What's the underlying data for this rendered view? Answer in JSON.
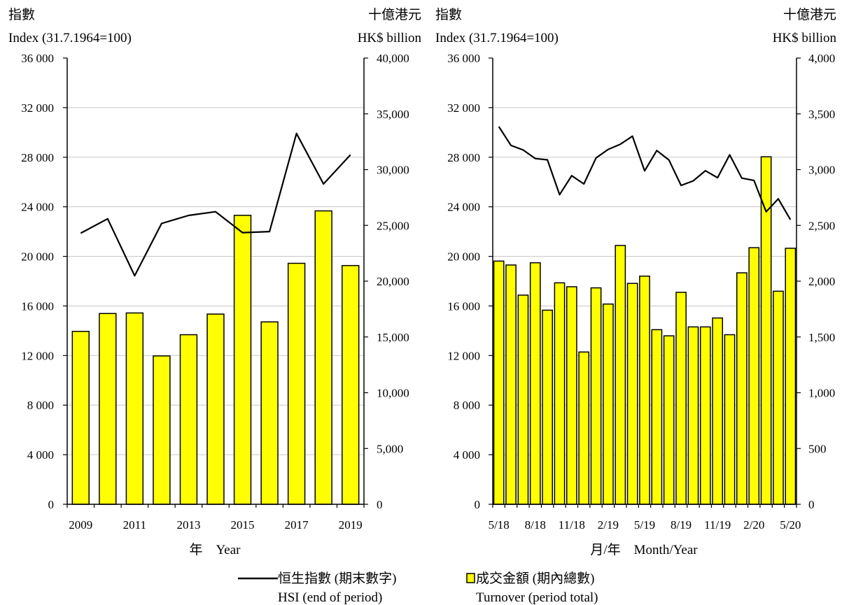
{
  "chart_data": [
    {
      "type": "bar+line",
      "left_axis": {
        "title_zh": "指數",
        "title_en": "Index (31.7.1964=100)",
        "min": 0,
        "max": 36000,
        "ticks": [
          0,
          4000,
          8000,
          12000,
          16000,
          20000,
          24000,
          28000,
          32000,
          36000
        ],
        "tick_labels": [
          "0",
          "4 000",
          "8 000",
          "12 000",
          "16 000",
          "20 000",
          "24 000",
          "28 000",
          "32 000",
          "36 000"
        ]
      },
      "right_axis": {
        "title_zh": "十億港元",
        "title_en": "HK$ billion",
        "min": 0,
        "max": 40000,
        "ticks": [
          0,
          5000,
          10000,
          15000,
          20000,
          25000,
          30000,
          35000,
          40000
        ],
        "tick_labels": [
          "0",
          "5,000",
          "10,000",
          "15,000",
          "20,000",
          "25,000",
          "30,000",
          "35,000",
          "40,000"
        ]
      },
      "x_axis": {
        "label": "年　Year",
        "tick_labels": [
          "2009",
          "",
          "2011",
          "",
          "2013",
          "",
          "2015",
          "",
          "2017",
          "",
          "2019"
        ]
      },
      "categories": [
        "2009",
        "2010",
        "2011",
        "2012",
        "2013",
        "2014",
        "2015",
        "2016",
        "2017",
        "2018",
        "2019"
      ],
      "turnover": [
        15500,
        17100,
        17150,
        13300,
        15200,
        17050,
        25900,
        16350,
        21600,
        26300,
        21400
      ],
      "hsi": [
        21870,
        23035,
        18434,
        22657,
        23306,
        23605,
        21914,
        22001,
        29919,
        25846,
        28190
      ]
    },
    {
      "type": "bar+line",
      "left_axis": {
        "title_zh": "指數",
        "title_en": "Index (31.7.1964=100)",
        "min": 0,
        "max": 36000,
        "ticks": [
          0,
          4000,
          8000,
          12000,
          16000,
          20000,
          24000,
          28000,
          32000,
          36000
        ],
        "tick_labels": [
          "0",
          "4 000",
          "8 000",
          "12 000",
          "16 000",
          "20 000",
          "24 000",
          "28 000",
          "32 000",
          "36 000"
        ]
      },
      "right_axis": {
        "title_zh": "十億港元",
        "title_en": "HK$ billion",
        "min": 0,
        "max": 4000,
        "ticks": [
          0,
          500,
          1000,
          1500,
          2000,
          2500,
          3000,
          3500,
          4000
        ],
        "tick_labels": [
          "0",
          "500",
          "1,000",
          "1,500",
          "2,000",
          "2,500",
          "3,000",
          "3,500",
          "4,000"
        ]
      },
      "x_axis": {
        "label": "月/年　Month/Year",
        "tick_labels": [
          "5/18",
          "",
          "",
          "8/18",
          "",
          "",
          "11/18",
          "",
          "",
          "2/19",
          "",
          "",
          "5/19",
          "",
          "",
          "8/19",
          "",
          "",
          "11/19",
          "",
          "",
          "2/20",
          "",
          "",
          "5/20"
        ]
      },
      "categories": [
        "5/18",
        "6/18",
        "7/18",
        "8/18",
        "9/18",
        "10/18",
        "11/18",
        "12/18",
        "1/19",
        "2/19",
        "3/19",
        "4/19",
        "5/19",
        "6/19",
        "7/19",
        "8/19",
        "9/19",
        "10/19",
        "11/19",
        "12/19",
        "1/20",
        "2/20",
        "3/20",
        "4/20",
        "5/20"
      ],
      "turnover": [
        2180,
        2145,
        1875,
        2165,
        1740,
        1985,
        1950,
        1365,
        1940,
        1795,
        2320,
        1980,
        2045,
        1565,
        1510,
        1900,
        1590,
        1590,
        1670,
        1520,
        2075,
        2300,
        3115,
        1910,
        2295
      ],
      "hsi": [
        30468,
        28955,
        28583,
        27889,
        27789,
        24979,
        26507,
        25846,
        27942,
        28633,
        29051,
        29699,
        26901,
        28543,
        27778,
        25725,
        26092,
        26907,
        26346,
        28190,
        26313,
        26129,
        23603,
        24643,
        22961
      ]
    }
  ],
  "legend": {
    "line_zh": "恒生指數 (期末數字)",
    "line_en": "HSI (end of period)",
    "bar_zh": "成交金額 (期內總數)",
    "bar_en": "Turnover (period total)"
  },
  "colors": {
    "bar_fill": "#ffff00",
    "bar_stroke": "#000000",
    "line": "#000000",
    "grid": "#c8c8c8"
  }
}
